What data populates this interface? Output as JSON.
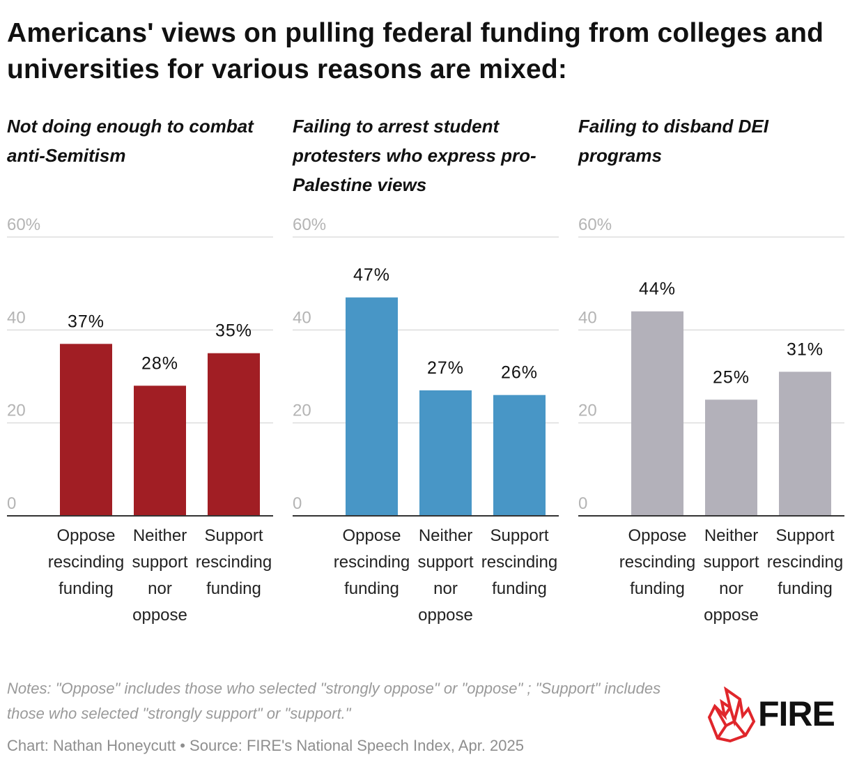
{
  "title": "Americans' views on pulling federal funding from colleges and universities for various reasons are mixed:",
  "colors": {
    "red": "#a11e24",
    "blue": "#4896c6",
    "gray": "#b3b1ba",
    "axis": "#333333",
    "grid": "#dddddd"
  },
  "chart_data": [
    {
      "type": "bar",
      "title": "Not doing enough to combat anti-Semitism",
      "categories": [
        "Oppose rescinding funding",
        "Neither support nor oppose",
        "Support rescinding funding"
      ],
      "category_labels": [
        "Oppose\nrescinding\nfunding",
        "Neither\nsupport\nnor\noppose",
        "Support\nrescinding\nfunding"
      ],
      "values": [
        37,
        28,
        35
      ],
      "value_labels": [
        "37%",
        "28%",
        "35%"
      ],
      "yticks": [
        0,
        20,
        40,
        60
      ],
      "ytick_labels": [
        "0",
        "20",
        "40",
        "60%"
      ],
      "ylim": [
        0,
        60
      ],
      "color": "#a11e24",
      "grid": true
    },
    {
      "type": "bar",
      "title": "Failing to arrest student protesters who express pro-Palestine views",
      "categories": [
        "Oppose rescinding funding",
        "Neither support nor oppose",
        "Support rescinding funding"
      ],
      "category_labels": [
        "Oppose\nrescinding\nfunding",
        "Neither\nsupport\nnor\noppose",
        "Support\nrescinding\nfunding"
      ],
      "values": [
        47,
        27,
        26
      ],
      "value_labels": [
        "47%",
        "27%",
        "26%"
      ],
      "yticks": [
        0,
        20,
        40,
        60
      ],
      "ytick_labels": [
        "0",
        "20",
        "40",
        "60%"
      ],
      "ylim": [
        0,
        60
      ],
      "color": "#4896c6",
      "grid": true
    },
    {
      "type": "bar",
      "title": "Failing to disband DEI programs",
      "categories": [
        "Oppose rescinding funding",
        "Neither support nor oppose",
        "Support rescinding funding"
      ],
      "category_labels": [
        "Oppose\nrescinding\nfunding",
        "Neither\nsupport\nnor\noppose",
        "Support\nrescinding\nfunding"
      ],
      "values": [
        44,
        25,
        31
      ],
      "value_labels": [
        "44%",
        "25%",
        "31%"
      ],
      "yticks": [
        0,
        20,
        40,
        60
      ],
      "ytick_labels": [
        "0",
        "20",
        "40",
        "60%"
      ],
      "ylim": [
        0,
        60
      ],
      "color": "#b3b1ba",
      "grid": true
    }
  ],
  "notes": "Notes: \"Oppose\" includes those who selected \"strongly oppose\" or \"oppose\" ; \"Support\" includes those who selected \"strongly support\" or \"support.\"",
  "credit": "Chart: Nathan Honeycutt • Source: FIRE's National Speech Index, Apr. 2025",
  "logo": {
    "text": "FIRE",
    "icon": "flame-icon"
  }
}
